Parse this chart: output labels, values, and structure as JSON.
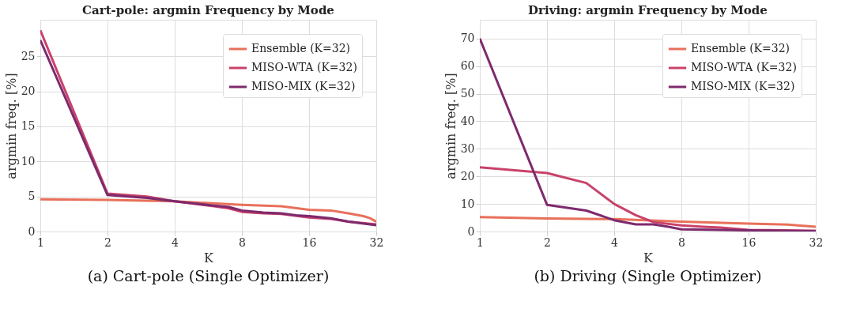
{
  "chart_data": [
    {
      "type": "line",
      "title": "Cart-pole: argmin Frequency by Mode",
      "xlabel": "K",
      "ylabel": "argmin freq. [%]",
      "annotations": [
        "(a) Cart-pole (Single Optimizer)"
      ],
      "log": "x",
      "grid": true,
      "legend": "top right",
      "xlim": [
        1,
        32
      ],
      "xticks": [
        1,
        2,
        4,
        8,
        16,
        32
      ],
      "ylim": [
        0,
        30.2
      ],
      "yticks": [
        0,
        5,
        10,
        15,
        20,
        25
      ],
      "series": [
        {
          "name": "Ensemble (K=32)",
          "color": "#e8705a",
          "x": [
            1,
            2,
            4,
            8,
            12,
            16,
            20,
            24,
            28,
            30,
            32
          ],
          "values": [
            4.6,
            4.5,
            4.3,
            3.8,
            3.6,
            3.1,
            3.0,
            2.6,
            2.2,
            1.9,
            1.4
          ]
        },
        {
          "name": "MISO-WTA (K=32)",
          "color": "#c9426a",
          "x": [
            1,
            2,
            3,
            4,
            6,
            7,
            8,
            10,
            12,
            16,
            20,
            24,
            32
          ],
          "values": [
            28.7,
            5.4,
            5.0,
            4.3,
            3.6,
            3.3,
            2.8,
            2.6,
            2.5,
            2.0,
            1.8,
            1.4,
            1.0
          ]
        },
        {
          "name": "MISO-MIX (K=32)",
          "color": "#7e2a6d",
          "x": [
            1,
            2,
            3,
            4,
            6,
            7,
            8,
            10,
            12,
            14,
            16,
            20,
            24,
            32
          ],
          "values": [
            27.3,
            5.2,
            4.8,
            4.3,
            3.7,
            3.5,
            3.0,
            2.7,
            2.6,
            2.3,
            2.2,
            1.9,
            1.4,
            0.9
          ]
        }
      ]
    },
    {
      "type": "line",
      "title": "Driving: argmin Frequency by Mode",
      "xlabel": "K",
      "ylabel": "argmin freq. [%]",
      "annotations": [
        "(b) Driving (Single Optimizer)"
      ],
      "log": "x",
      "grid": true,
      "legend": "top right",
      "xlim": [
        1,
        32
      ],
      "xticks": [
        1,
        2,
        4,
        8,
        16,
        32
      ],
      "ylim": [
        0,
        76.8
      ],
      "yticks": [
        0,
        10,
        20,
        30,
        40,
        50,
        60,
        70
      ],
      "series": [
        {
          "name": "Ensemble (K=32)",
          "color": "#e8705a",
          "x": [
            1,
            2,
            4,
            8,
            16,
            24,
            32
          ],
          "values": [
            5.2,
            4.7,
            4.5,
            3.6,
            2.9,
            2.5,
            1.7
          ]
        },
        {
          "name": "MISO-WTA (K=32)",
          "color": "#c9426a",
          "x": [
            1,
            2,
            3,
            4,
            5,
            6,
            8,
            10,
            12,
            16,
            20,
            32
          ],
          "values": [
            23.3,
            21.2,
            17.6,
            10,
            5.9,
            3.4,
            2.2,
            1.7,
            1.4,
            0.6,
            0.5,
            0.2
          ]
        },
        {
          "name": "MISO-MIX (K=32)",
          "color": "#7e2a6d",
          "x": [
            1,
            2,
            3,
            4,
            5,
            6,
            7,
            8,
            12,
            16,
            32
          ],
          "values": [
            70,
            9.7,
            7.6,
            4.1,
            2.6,
            2.6,
            1.7,
            0.8,
            0.6,
            0.4,
            0.2
          ]
        }
      ]
    }
  ]
}
